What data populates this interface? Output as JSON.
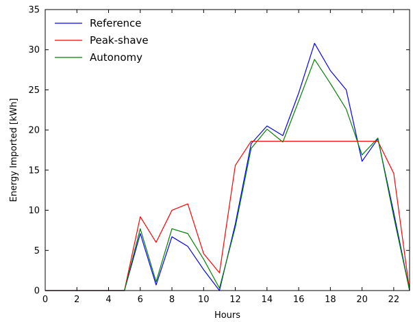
{
  "chart_data": {
    "type": "line",
    "title": "",
    "xlabel": "Hours",
    "ylabel": "Energy Imported [kWh]",
    "xlim": [
      0,
      23
    ],
    "ylim": [
      0,
      35
    ],
    "xticks": [
      0,
      2,
      4,
      6,
      8,
      10,
      12,
      14,
      16,
      18,
      20,
      22
    ],
    "yticks": [
      0,
      5,
      10,
      15,
      20,
      25,
      30,
      35
    ],
    "grid": false,
    "legend_position": "top-left",
    "x": [
      0,
      1,
      2,
      3,
      4,
      5,
      6,
      7,
      8,
      9,
      10,
      11,
      12,
      13,
      14,
      15,
      16,
      17,
      18,
      19,
      20,
      21,
      22,
      23
    ],
    "series": [
      {
        "name": "Reference",
        "color": "#0000ff",
        "values": [
          0,
          0,
          0,
          0,
          0,
          0,
          7.1,
          0.7,
          6.7,
          5.5,
          2.6,
          0,
          8.3,
          18.3,
          20.5,
          19.3,
          24.6,
          30.8,
          27.4,
          25.0,
          16.1,
          18.9,
          9.7,
          0
        ]
      },
      {
        "name": "Peak-shave",
        "color": "#ff0000",
        "values": [
          0,
          0,
          0,
          0,
          0,
          0,
          9.2,
          6.0,
          10.0,
          10.8,
          4.6,
          2.2,
          15.6,
          18.6,
          18.6,
          18.6,
          18.6,
          18.6,
          18.6,
          18.6,
          18.6,
          18.6,
          14.6,
          0
        ]
      },
      {
        "name": "Autonomy",
        "color": "#008000",
        "values": [
          0,
          0,
          0,
          0,
          0,
          0,
          7.7,
          1.1,
          7.7,
          7.1,
          3.9,
          0.3,
          7.9,
          17.7,
          20.1,
          18.5,
          23.6,
          28.8,
          25.8,
          22.6,
          16.9,
          19.0,
          9.2,
          0
        ]
      }
    ]
  }
}
